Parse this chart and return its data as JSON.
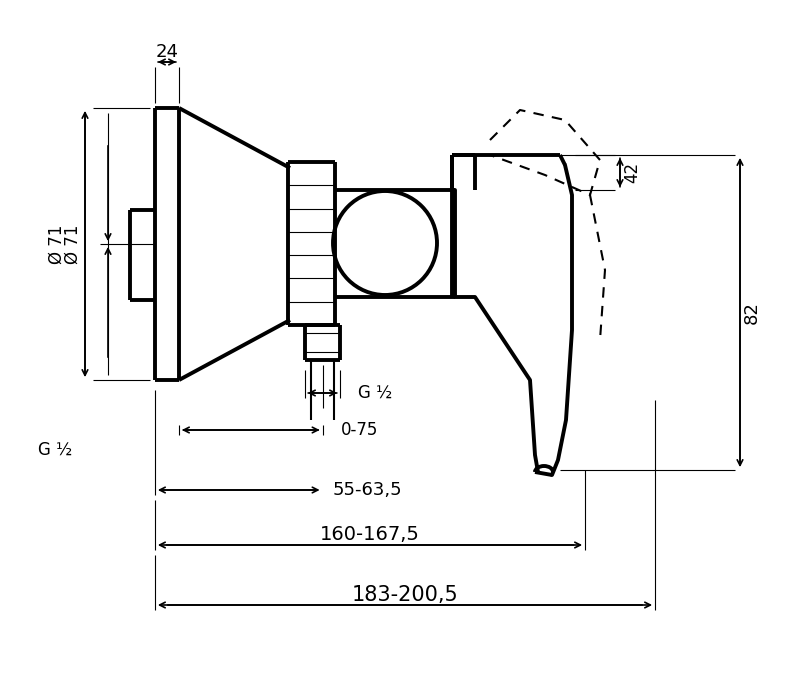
{
  "bg_color": "#ffffff",
  "line_color": "#000000",
  "lw_thick": 2.8,
  "lw_medium": 1.5,
  "lw_thin": 0.8,
  "fig_width": 8.0,
  "fig_height": 6.9,
  "annotations": {
    "dim_24": "24",
    "dim_phi71": "Ø 71",
    "dim_G12_left": "G ½",
    "dim_G12_right": "G ½",
    "dim_42": "42",
    "dim_82": "82",
    "dim_075": "0-75",
    "dim_5563": "55-63,5",
    "dim_160167": "160-167,5",
    "dim_183200": "183-200,5"
  }
}
